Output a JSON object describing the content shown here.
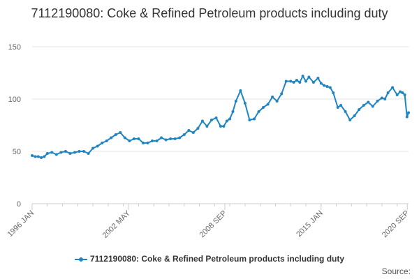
{
  "chart_data": {
    "type": "line",
    "title": "7112190080: Coke & Refined Petroleum products including duty",
    "xlabel": "",
    "ylabel": "",
    "ylim": [
      0,
      150
    ],
    "yticks": [
      0,
      50,
      100,
      150
    ],
    "xrange": [
      1996.0,
      2020.75
    ],
    "xtick_labels": [
      {
        "label": "1996 JAN",
        "x": 1996.0
      },
      {
        "label": "2002 MAY",
        "x": 2002.33
      },
      {
        "label": "2008 SEP",
        "x": 2008.67
      },
      {
        "label": "2015 JAN",
        "x": 2015.0
      },
      {
        "label": "2020 SEP",
        "x": 2020.67
      }
    ],
    "minor_xticks": [
      1996.0,
      1997.0,
      1998.0,
      1999.0,
      2000.0,
      2001.0,
      2002.0,
      2003.0,
      2004.0,
      2005.0,
      2006.0,
      2007.0,
      2008.0,
      2009.0,
      2010.0,
      2011.0,
      2012.0,
      2013.0,
      2014.0,
      2015.0,
      2016.0,
      2017.0,
      2018.0,
      2019.0,
      2020.0
    ],
    "grid": true,
    "legend_position": "bottom",
    "series": [
      {
        "name": "7112190080: Coke & Refined Petroleum products including duty",
        "color": "#1f84c2",
        "x": [
          1996.0,
          1996.2,
          1996.4,
          1996.6,
          1996.8,
          1997.0,
          1997.3,
          1997.6,
          1997.9,
          1998.2,
          1998.5,
          1998.8,
          1999.1,
          1999.4,
          1999.7,
          2000.0,
          2000.3,
          2000.6,
          2000.9,
          2001.2,
          2001.5,
          2001.8,
          2002.1,
          2002.4,
          2002.7,
          2003.0,
          2003.3,
          2003.6,
          2003.9,
          2004.2,
          2004.5,
          2004.8,
          2005.1,
          2005.4,
          2005.7,
          2006.0,
          2006.3,
          2006.6,
          2006.9,
          2007.2,
          2007.5,
          2007.8,
          2008.1,
          2008.4,
          2008.6,
          2008.8,
          2009.0,
          2009.2,
          2009.4,
          2009.7,
          2010.0,
          2010.3,
          2010.6,
          2010.9,
          2011.2,
          2011.5,
          2011.8,
          2012.1,
          2012.4,
          2012.7,
          2013.0,
          2013.2,
          2013.4,
          2013.6,
          2013.8,
          2014.0,
          2014.2,
          2014.5,
          2014.8,
          2015.0,
          2015.2,
          2015.4,
          2015.6,
          2015.8,
          2016.1,
          2016.3,
          2016.6,
          2016.9,
          2017.2,
          2017.5,
          2017.8,
          2018.1,
          2018.4,
          2018.7,
          2019.0,
          2019.2,
          2019.4,
          2019.7,
          2020.0,
          2020.2,
          2020.35,
          2020.5,
          2020.65,
          2020.75
        ],
        "values": [
          46,
          45,
          45,
          44,
          45,
          48,
          49,
          47,
          49,
          50,
          48,
          49,
          50,
          50,
          48,
          53,
          55,
          58,
          60,
          63,
          66,
          68,
          63,
          60,
          62,
          62,
          58,
          58,
          60,
          60,
          63,
          61,
          62,
          62,
          63,
          66,
          70,
          68,
          72,
          79,
          74,
          80,
          82,
          74,
          74,
          79,
          81,
          88,
          98,
          108,
          96,
          80,
          81,
          88,
          92,
          95,
          102,
          98,
          105,
          117,
          117,
          116,
          118,
          116,
          122,
          117,
          121,
          116,
          120,
          115,
          113,
          112,
          111,
          106,
          92,
          94,
          88,
          80,
          84,
          90,
          94,
          97,
          93,
          98,
          101,
          100,
          106,
          111,
          104,
          107,
          106,
          104,
          83,
          87
        ]
      }
    ]
  },
  "legend": {
    "label": "7112190080: Coke & Refined Petroleum products including duty"
  },
  "source": {
    "label": "Source:"
  }
}
